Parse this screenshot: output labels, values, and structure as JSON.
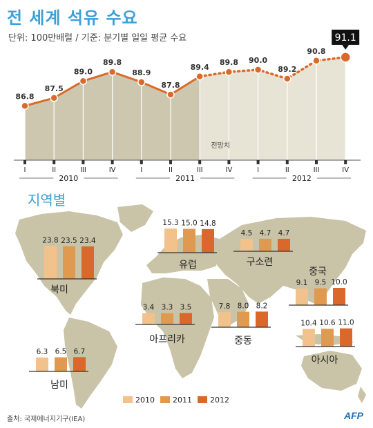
{
  "title": "전 세계 석유 수요",
  "subtitle": "단위: 100만배럴 / 기준: 분기별 일일 평균 수요",
  "section_regions": "지역별",
  "forecast_label": "전망치",
  "source": "출처: 국제에너지기구(IEA)",
  "agency": "AFP",
  "colors": {
    "y2010": "#f2c28c",
    "y2011": "#e09a50",
    "y2012": "#d9682a",
    "line": "#d96a2a",
    "area_actual": "#ccc7ae",
    "area_forecast": "#e7e4d6",
    "map": "#c9c3a7",
    "accent": "#3aa0d8"
  },
  "chart_data": [
    {
      "type": "line",
      "title": "전 세계 석유 수요",
      "subtitle": "단위: 100만배럴 / 기준: 분기별 일일 평균 수요",
      "x": [
        "I",
        "II",
        "III",
        "IV",
        "I",
        "II",
        "III",
        "IV",
        "I",
        "II",
        "III",
        "IV"
      ],
      "years": [
        "2010",
        "2011",
        "2012"
      ],
      "series": [
        {
          "values": [
            86.8,
            87.5,
            89.0,
            89.8,
            88.9,
            87.8,
            89.4,
            89.8,
            90.0,
            89.2,
            90.8,
            91.1
          ],
          "forecast_from_index": 6
        }
      ],
      "highlight": "91.1",
      "ylim": [
        82,
        92.5
      ],
      "grid": true,
      "annotation": "전망치"
    },
    {
      "type": "bar",
      "title": "지역별",
      "legend": [
        "2010",
        "2011",
        "2012"
      ],
      "legend_position": "bottom",
      "regions": [
        {
          "name": "북미",
          "values": [
            23.8,
            23.5,
            23.4
          ]
        },
        {
          "name": "유럽",
          "values": [
            15.3,
            15.0,
            14.8
          ]
        },
        {
          "name": "구소련",
          "values": [
            4.5,
            4.7,
            4.7
          ]
        },
        {
          "name": "중국",
          "values": [
            9.1,
            9.5,
            10.0
          ]
        },
        {
          "name": "아프리카",
          "values": [
            3.4,
            3.3,
            3.5
          ]
        },
        {
          "name": "중동",
          "values": [
            7.8,
            8.0,
            8.2
          ]
        },
        {
          "name": "아시아",
          "values": [
            10.4,
            10.6,
            11.0
          ]
        },
        {
          "name": "남미",
          "values": [
            6.3,
            6.5,
            6.7
          ]
        }
      ]
    }
  ]
}
